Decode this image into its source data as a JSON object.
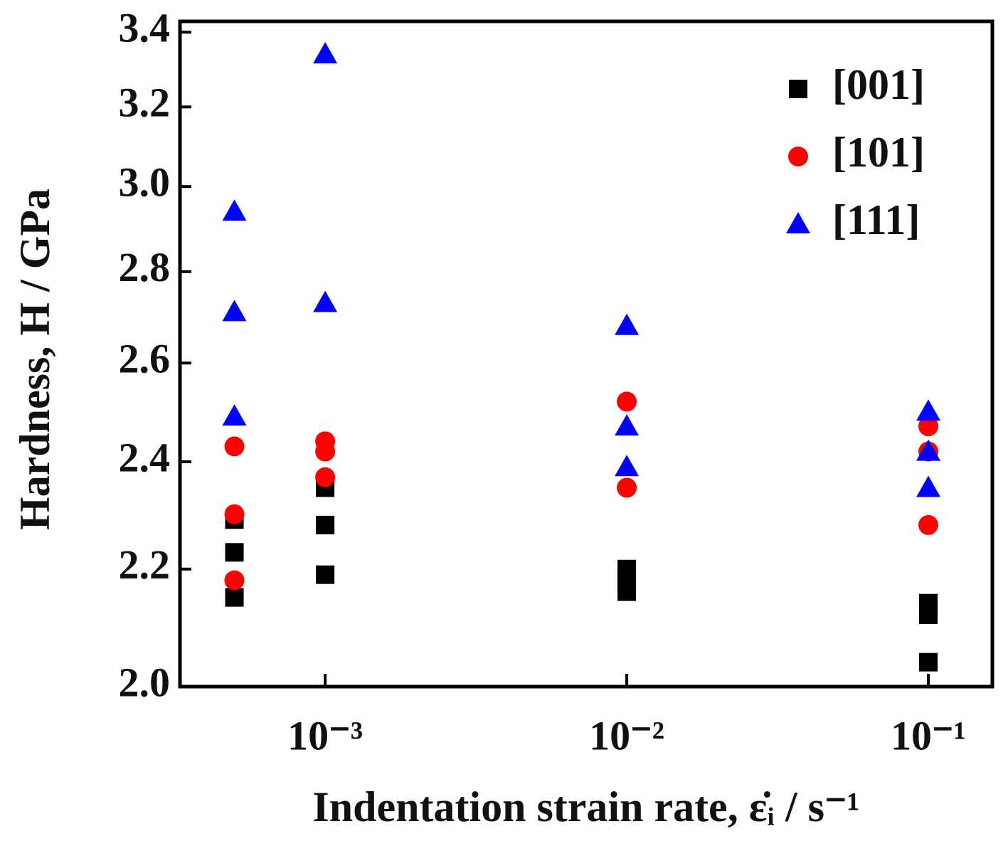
{
  "chart_data": {
    "type": "scatter",
    "xlabel": "Indentation strain rate, ε̇ᵢ / s⁻¹",
    "ylabel": "Hardness, H / GPa",
    "xscale": "log",
    "yscale": "log",
    "xlim": [
      0.00033,
      0.163
    ],
    "ylim": [
      2.0,
      3.43
    ],
    "xticks": [
      {
        "value": 0.001,
        "label": "10⁻³"
      },
      {
        "value": 0.01,
        "label": "10⁻²"
      },
      {
        "value": 0.1,
        "label": "10⁻¹"
      }
    ],
    "yticks": [
      {
        "value": 2.0,
        "label": "2.0"
      },
      2.2,
      2.4,
      2.6,
      2.8,
      {
        "value": 3.0,
        "label": "3.0"
      },
      3.2,
      3.4
    ],
    "legend": "upper right",
    "series": [
      {
        "name": "[001]",
        "color": "#000000",
        "marker": "square",
        "x": [
          0.0005,
          0.0005,
          0.0005,
          0.001,
          0.001,
          0.001,
          0.01,
          0.01,
          0.01,
          0.1,
          0.1,
          0.1
        ],
        "values": [
          2.29,
          2.23,
          2.15,
          2.35,
          2.28,
          2.19,
          2.2,
          2.18,
          2.16,
          2.14,
          2.12,
          2.04
        ]
      },
      {
        "name": "[101]",
        "color": "#ff0000",
        "marker": "circle",
        "x": [
          0.0005,
          0.0005,
          0.0005,
          0.001,
          0.001,
          0.001,
          0.01,
          0.01,
          0.1,
          0.1,
          0.1
        ],
        "values": [
          2.43,
          2.3,
          2.18,
          2.44,
          2.42,
          2.37,
          2.52,
          2.35,
          2.47,
          2.42,
          2.28
        ]
      },
      {
        "name": "[111]",
        "color": "#0000ff",
        "marker": "triangle",
        "x": [
          0.0005,
          0.0005,
          0.0005,
          0.001,
          0.001,
          0.01,
          0.01,
          0.01,
          0.1,
          0.1,
          0.1
        ],
        "values": [
          2.94,
          2.71,
          2.49,
          3.34,
          2.73,
          2.68,
          2.47,
          2.39,
          2.5,
          2.42,
          2.35
        ]
      }
    ]
  }
}
